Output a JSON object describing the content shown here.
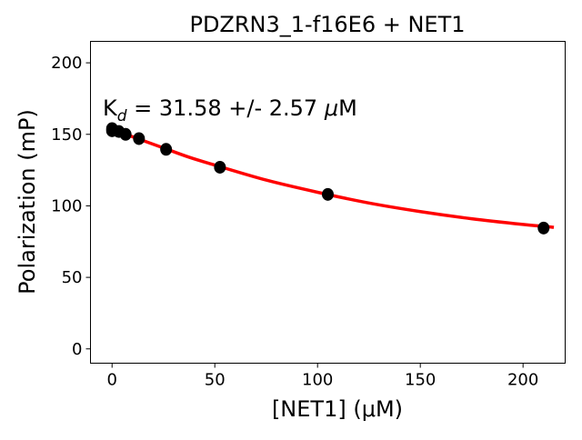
{
  "chart_data": {
    "type": "scatter",
    "title": "PDZRN3_1-f16E6 + NET1",
    "xlabel": "[NET1] (μM)",
    "ylabel": "Polarization (mP)",
    "annotation": {
      "prefix": "K",
      "sub": "d",
      "text": " = 31.58 +/- 2.57 ",
      "mu": "μ",
      "unit": "M"
    },
    "xlim": [
      -10.5,
      220.5
    ],
    "ylim": [
      -10,
      215
    ],
    "xticks": [
      0,
      50,
      100,
      150,
      200
    ],
    "yticks": [
      0,
      50,
      100,
      150,
      200
    ],
    "grid": false,
    "points": {
      "color": "#000000",
      "x": [
        0,
        0,
        3.3,
        6.6,
        13.1,
        26.3,
        52.5,
        105,
        210
      ],
      "y": [
        152.5,
        154,
        152,
        150,
        147,
        139.5,
        127,
        108,
        84.5
      ]
    },
    "fit": {
      "color": "#ff0000",
      "x": [
        0,
        12.5,
        25,
        37.5,
        50,
        75,
        100,
        125,
        150,
        175,
        200,
        215
      ],
      "y": [
        153.5,
        147,
        140.5,
        134,
        128.5,
        118,
        109.5,
        102,
        96,
        91,
        87,
        85
      ]
    }
  }
}
